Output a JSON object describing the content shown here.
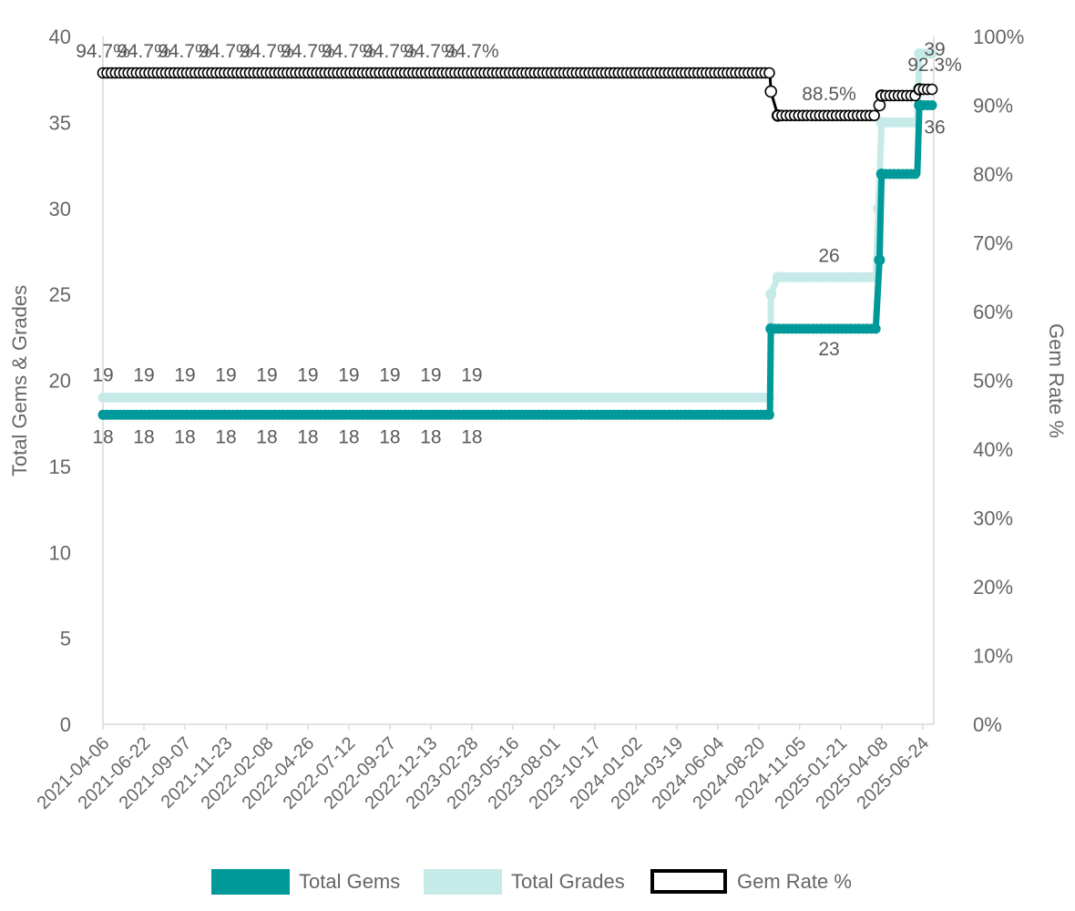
{
  "colors": {
    "total_gems": "#009999",
    "total_grades": "#c6eae8",
    "gem_rate": "#000000",
    "axis": "#d9d9d9",
    "text": "#666666"
  },
  "chart_data": {
    "type": "line",
    "title": "",
    "grid": false,
    "legend_position": "bottom",
    "x_tick_labels": [
      "2021-04-06",
      "2021-06-22",
      "2021-09-07",
      "2021-11-23",
      "2022-02-08",
      "2022-04-26",
      "2022-07-12",
      "2022-09-27",
      "2022-12-13",
      "2023-02-28",
      "2023-05-16",
      "2023-08-01",
      "2023-10-17",
      "2024-01-02",
      "2024-03-19",
      "2024-06-04",
      "2024-08-20",
      "2024-11-05",
      "2025-01-21",
      "2025-04-08",
      "2025-06-24"
    ],
    "y_left": {
      "label": "Total Gems & Grades",
      "min": 0,
      "max": 40,
      "ticks": [
        "0",
        "5",
        "10",
        "15",
        "20",
        "25",
        "30",
        "35",
        "40"
      ]
    },
    "y_right": {
      "label": "Gem Rate %",
      "min": 0,
      "max": 100,
      "ticks": [
        "0%",
        "10%",
        "20%",
        "30%",
        "40%",
        "50%",
        "60%",
        "70%",
        "80%",
        "90%",
        "100%"
      ]
    },
    "x_domain": [
      "2021-04-06",
      "2025-07-15"
    ],
    "series": [
      {
        "name": "Total Gems",
        "axis": "left",
        "steps": [
          {
            "date": "2021-04-06",
            "value": 18
          },
          {
            "date": "2024-09-10",
            "value": 18
          },
          {
            "date": "2024-09-12",
            "value": 23
          },
          {
            "date": "2025-03-28",
            "value": 23
          },
          {
            "date": "2025-04-04",
            "value": 27
          },
          {
            "date": "2025-04-08",
            "value": 32
          },
          {
            "date": "2025-06-14",
            "value": 32
          },
          {
            "date": "2025-06-18",
            "value": 36
          },
          {
            "date": "2025-07-15",
            "value": 36
          }
        ]
      },
      {
        "name": "Total Grades",
        "axis": "left",
        "steps": [
          {
            "date": "2021-04-06",
            "value": 19
          },
          {
            "date": "2024-09-10",
            "value": 19
          },
          {
            "date": "2024-09-12",
            "value": 25
          },
          {
            "date": "2024-09-25",
            "value": 26
          },
          {
            "date": "2025-03-28",
            "value": 26
          },
          {
            "date": "2025-04-02",
            "value": 30
          },
          {
            "date": "2025-04-08",
            "value": 35
          },
          {
            "date": "2025-06-14",
            "value": 35
          },
          {
            "date": "2025-06-18",
            "value": 39
          },
          {
            "date": "2025-07-15",
            "value": 39
          }
        ]
      },
      {
        "name": "Gem Rate %",
        "axis": "right",
        "steps": [
          {
            "date": "2021-04-06",
            "value": 94.7
          },
          {
            "date": "2024-09-10",
            "value": 94.7
          },
          {
            "date": "2024-09-12",
            "value": 92.0
          },
          {
            "date": "2024-09-25",
            "value": 88.5
          },
          {
            "date": "2025-03-28",
            "value": 88.5
          },
          {
            "date": "2025-04-04",
            "value": 90.0
          },
          {
            "date": "2025-04-08",
            "value": 91.4
          },
          {
            "date": "2025-06-14",
            "value": 91.4
          },
          {
            "date": "2025-06-18",
            "value": 92.3
          },
          {
            "date": "2025-07-15",
            "value": 92.3
          }
        ]
      }
    ],
    "data_labels": {
      "total_grades": [
        {
          "date": "2021-04-06",
          "text": "19"
        },
        {
          "date": "2021-06-22",
          "text": "19"
        },
        {
          "date": "2021-09-07",
          "text": "19"
        },
        {
          "date": "2021-11-23",
          "text": "19"
        },
        {
          "date": "2022-02-08",
          "text": "19"
        },
        {
          "date": "2022-04-26",
          "text": "19"
        },
        {
          "date": "2022-07-12",
          "text": "19"
        },
        {
          "date": "2022-09-27",
          "text": "19"
        },
        {
          "date": "2022-12-13",
          "text": "19"
        },
        {
          "date": "2023-02-28",
          "text": "19"
        },
        {
          "date": "2024-10-25",
          "text": "26"
        },
        {
          "date": "2025-07-02",
          "text": "39"
        }
      ],
      "total_gems": [
        {
          "date": "2021-04-06",
          "text": "18"
        },
        {
          "date": "2021-06-22",
          "text": "18"
        },
        {
          "date": "2021-09-07",
          "text": "18"
        },
        {
          "date": "2021-11-23",
          "text": "18"
        },
        {
          "date": "2022-02-08",
          "text": "18"
        },
        {
          "date": "2022-04-26",
          "text": "18"
        },
        {
          "date": "2022-07-12",
          "text": "18"
        },
        {
          "date": "2022-09-27",
          "text": "18"
        },
        {
          "date": "2022-12-13",
          "text": "18"
        },
        {
          "date": "2023-02-28",
          "text": "18"
        },
        {
          "date": "2024-10-25",
          "text": "23"
        },
        {
          "date": "2025-07-01",
          "text": "36"
        }
      ],
      "gem_rate": [
        {
          "date": "2021-04-06",
          "text": "94.7%"
        },
        {
          "date": "2021-06-22",
          "text": "94.7%"
        },
        {
          "date": "2021-09-07",
          "text": "94.7%"
        },
        {
          "date": "2021-11-23",
          "text": "94.7%"
        },
        {
          "date": "2022-02-08",
          "text": "94.7%"
        },
        {
          "date": "2022-04-26",
          "text": "94.7%"
        },
        {
          "date": "2022-07-12",
          "text": "94.7%"
        },
        {
          "date": "2022-09-27",
          "text": "94.7%"
        },
        {
          "date": "2022-12-13",
          "text": "94.7%"
        },
        {
          "date": "2023-02-28",
          "text": "94.7%"
        },
        {
          "date": "2024-10-25",
          "text": "88.5%"
        },
        {
          "date": "2025-07-02",
          "text": "92.3%"
        }
      ]
    }
  },
  "legend": [
    {
      "name": "Total Gems",
      "style": "solid",
      "color_key": "total_gems"
    },
    {
      "name": "Total Grades",
      "style": "solid",
      "color_key": "total_grades"
    },
    {
      "name": "Gem Rate %",
      "style": "outline",
      "color_key": "gem_rate"
    }
  ]
}
